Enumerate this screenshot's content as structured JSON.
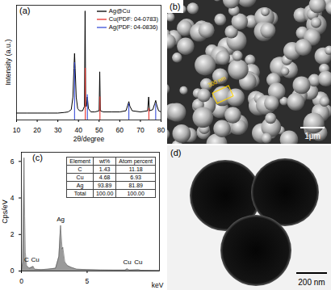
{
  "chart_data": [
    {
      "type": "line",
      "panel": "(a)",
      "x_label": "2θ/degree",
      "y_label": "Intensity (a.u.)",
      "xlim": [
        10,
        80
      ],
      "xticks": [
        10,
        20,
        30,
        40,
        50,
        60,
        70,
        80
      ],
      "ylim": [
        0,
        1
      ],
      "tick_labels": "x",
      "legend": "top-right",
      "series": [
        {
          "name": "Ag@Cu",
          "color": "#000000",
          "type": "line",
          "x": [
            10,
            15,
            20,
            25,
            30,
            33,
            35,
            36.5,
            37.3,
            37.8,
            38.1,
            38.4,
            38.9,
            39.6,
            40.5,
            42,
            42.9,
            43.2,
            43.5,
            43.9,
            44.3,
            44.8,
            46,
            48,
            50,
            50.3,
            50.6,
            52,
            56,
            60,
            63,
            63.9,
            64.4,
            64.9,
            66,
            70,
            73.5,
            74,
            74.4,
            76,
            76.9,
            77.4,
            77.9,
            78.8,
            80
          ],
          "values": [
            0.06,
            0.06,
            0.06,
            0.06,
            0.06,
            0.065,
            0.07,
            0.09,
            0.2,
            0.45,
            0.58,
            0.45,
            0.2,
            0.1,
            0.08,
            0.08,
            0.12,
            0.95,
            0.12,
            0.12,
            0.2,
            0.1,
            0.07,
            0.07,
            0.08,
            0.42,
            0.08,
            0.07,
            0.07,
            0.07,
            0.08,
            0.13,
            0.16,
            0.12,
            0.08,
            0.07,
            0.08,
            0.2,
            0.08,
            0.09,
            0.14,
            0.17,
            0.13,
            0.08,
            0.07
          ]
        },
        {
          "name": "Cu(PDF: 04-0783)",
          "color": "#e8302a",
          "type": "stem",
          "x": [
            43.3,
            50.4,
            74.1
          ],
          "values": [
            0.45,
            0.2,
            0.1
          ]
        },
        {
          "name": "Ag(PDF: 04-0836)",
          "color": "#3a4fd8",
          "type": "stem",
          "x": [
            38.1,
            44.3,
            64.4,
            77.4
          ],
          "values": [
            0.5,
            0.22,
            0.14,
            0.14
          ]
        }
      ]
    },
    {
      "type": "area",
      "panel": "(c)",
      "x_label": "keV",
      "y_label": "Cps/eV",
      "xlim": [
        0,
        10.5
      ],
      "xticks": [
        0,
        5
      ],
      "ylim": [
        0,
        6.5
      ],
      "yticks": [
        0,
        2,
        4,
        6
      ],
      "color": "#9a9a9a",
      "x": [
        0,
        0.1,
        0.2,
        0.25,
        0.3,
        0.4,
        0.6,
        0.9,
        1.0,
        1.5,
        2.0,
        2.6,
        2.85,
        2.98,
        3.1,
        3.15,
        3.3,
        3.5,
        3.8,
        4.2,
        5,
        6,
        7,
        7.9,
        8.05,
        8.2,
        8.9,
        9.1,
        10.5
      ],
      "values": [
        0,
        0.5,
        6.2,
        3,
        1.0,
        0.3,
        0.15,
        0.25,
        0.1,
        0.08,
        0.1,
        0.15,
        0.8,
        2.5,
        1.2,
        1.3,
        0.5,
        0.3,
        0.2,
        0.1,
        0.08,
        0.06,
        0.05,
        0.05,
        0.12,
        0.05,
        0.07,
        0.04,
        0.03
      ],
      "annotations": [
        {
          "text": "C",
          "x": 0.4,
          "y": 0.6
        },
        {
          "text": "Cu",
          "x": 1.05,
          "y": 0.6
        },
        {
          "text": "Ag",
          "x": 2.98,
          "y": 2.85
        },
        {
          "text": "Cu",
          "x": 8.05,
          "y": 0.5
        },
        {
          "text": "Cu",
          "x": 8.9,
          "y": 0.5
        }
      ],
      "table": {
        "header": [
          "Element",
          "wt%",
          "Atom percent"
        ],
        "rows": [
          [
            "C",
            "1.43",
            "11.18"
          ],
          [
            "Cu",
            "4.68",
            "6.93"
          ],
          [
            "Ag",
            "93.89",
            "81.89"
          ],
          [
            "Total",
            "100.00",
            "100.00"
          ]
        ]
      }
    }
  ],
  "images": [
    {
      "panel": "(b)",
      "scale_bar": "1μm",
      "annotation": "300 nm"
    },
    {
      "panel": "(d)",
      "scale_bar": "200 nm"
    }
  ]
}
